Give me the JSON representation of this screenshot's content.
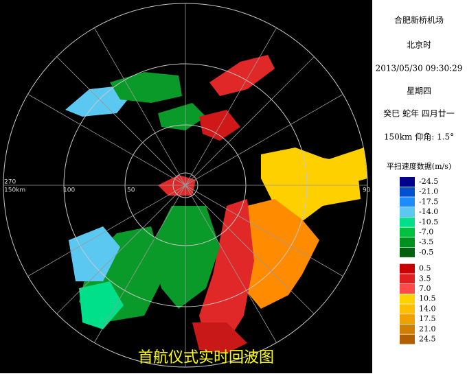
{
  "info": [
    "合肥新桥机场",
    "北京时",
    "2013/05/30 09:30:29",
    "星期四",
    "癸巳 蛇年  四月廿一",
    "150km  仰角: 1.5°"
  ],
  "legend": {
    "title": "平扫速度数据(m/s)",
    "entries": [
      {
        "label": "-24.5",
        "color": "#00008c"
      },
      {
        "label": "-21.0",
        "color": "#0050d0"
      },
      {
        "label": "-17.5",
        "color": "#1e8cff"
      },
      {
        "label": "-14.0",
        "color": "#5ac8f0"
      },
      {
        "label": "-10.5",
        "color": "#00e08a"
      },
      {
        "label": "-7.0",
        "color": "#00c040"
      },
      {
        "label": "-3.5",
        "color": "#009020"
      },
      {
        "label": "-0.5",
        "color": "#006010"
      },
      {
        "label": "0.5",
        "color": "#c80000"
      },
      {
        "label": "3.5",
        "color": "#e02020"
      },
      {
        "label": "7.0",
        "color": "#ff4a4a"
      },
      {
        "label": "10.5",
        "color": "#ffd200"
      },
      {
        "label": "14.0",
        "color": "#ffbe00"
      },
      {
        "label": "17.5",
        "color": "#f0a000"
      },
      {
        "label": "21.0",
        "color": "#d08000"
      },
      {
        "label": "24.5",
        "color": "#b06000"
      }
    ]
  },
  "radar": {
    "range_labels": [
      "270",
      "150km",
      "100",
      "50",
      "90"
    ],
    "caption": "首航仪式实时回波图"
  }
}
